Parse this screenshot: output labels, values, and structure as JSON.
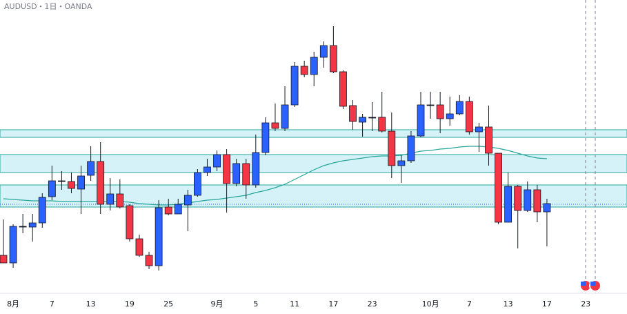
{
  "chart_data": {
    "type": "candlestick",
    "title": "AUDUSD・1日・OANDA",
    "categories": [
      null,
      "8月",
      null,
      null,
      null,
      "7",
      null,
      null,
      null,
      "13",
      null,
      null,
      null,
      "19",
      null,
      null,
      null,
      "25",
      null,
      null,
      null,
      null,
      "9月",
      null,
      null,
      null,
      "5",
      null,
      null,
      null,
      "11",
      null,
      null,
      null,
      "17",
      null,
      null,
      null,
      "23",
      null,
      null,
      null,
      null,
      null,
      "10月",
      null,
      null,
      null,
      "7",
      null,
      null,
      null,
      "13",
      null,
      null,
      null,
      "17",
      null,
      null,
      null,
      "23"
    ],
    "open": [
      85,
      74,
      127,
      126,
      132,
      170,
      193,
      192,
      181,
      201,
      221,
      159,
      174,
      157,
      109,
      85,
      70,
      155,
      145,
      158,
      172,
      205,
      213,
      231,
      189,
      218,
      187,
      234,
      277,
      269,
      303,
      359,
      347,
      372,
      389,
      351,
      302,
      278,
      285,
      285,
      265,
      215,
      222,
      258,
      303,
      303,
      283,
      290,
      308,
      264,
      271,
      233,
      133,
      185,
      150,
      180,
      148,
      null,
      null,
      null,
      null
    ],
    "high": [
      137,
      130,
      145,
      145,
      175,
      215,
      207,
      205,
      215,
      243,
      249,
      197,
      195,
      159,
      115,
      90,
      165,
      167,
      167,
      180,
      210,
      225,
      237,
      239,
      225,
      225,
      260,
      285,
      305,
      330,
      365,
      367,
      380,
      395,
      417,
      353,
      310,
      290,
      307,
      322,
      292,
      230,
      265,
      322,
      322,
      322,
      315,
      317,
      315,
      277,
      302,
      233,
      205,
      187,
      192,
      187,
      167,
      null,
      null,
      null,
      null
    ],
    "low": [
      74,
      67,
      117,
      105,
      125,
      165,
      180,
      175,
      145,
      193,
      145,
      150,
      153,
      105,
      83,
      65,
      63,
      143,
      145,
      120,
      170,
      200,
      207,
      147,
      185,
      167,
      183,
      230,
      265,
      265,
      300,
      343,
      330,
      357,
      349,
      297,
      267,
      257,
      265,
      263,
      197,
      190,
      219,
      256,
      283,
      262,
      273,
      288,
      260,
      235,
      215,
      130,
      133,
      95,
      148,
      133,
      98,
      null,
      null,
      null,
      null
    ],
    "close": [
      74,
      127,
      127,
      132,
      169,
      193,
      193,
      182,
      200,
      221,
      159,
      174,
      155,
      109,
      85,
      70,
      154,
      145,
      159,
      172,
      205,
      213,
      231,
      189,
      218,
      187,
      234,
      277,
      269,
      303,
      359,
      347,
      372,
      389,
      351,
      301,
      279,
      285,
      285,
      265,
      215,
      222,
      258,
      303,
      303,
      283,
      290,
      308,
      264,
      271,
      233,
      133,
      185,
      150,
      180,
      148,
      160,
      null,
      null,
      null,
      null
    ],
    "up_color": "#2962ff",
    "down_color": "#f23645",
    "ma": {
      "color": "#26a69a",
      "values": [
        167,
        166,
        165,
        164,
        164,
        164,
        163,
        163,
        163,
        163,
        163,
        163,
        163,
        162,
        160,
        159,
        158,
        158,
        159,
        161,
        163,
        165,
        166,
        168,
        170,
        172,
        176,
        179,
        183,
        188,
        195,
        202,
        209,
        215,
        219,
        222,
        224,
        226,
        228,
        229,
        229,
        230,
        233,
        236,
        237,
        239,
        240,
        242,
        243,
        243,
        242,
        240,
        237,
        233,
        229,
        226,
        225,
        null,
        null,
        null,
        null
      ]
    },
    "zones": [
      [
        267,
        256
      ],
      [
        231,
        205
      ],
      [
        187,
        155
      ]
    ],
    "level": 159,
    "ylim": [
      0,
      455
    ]
  }
}
